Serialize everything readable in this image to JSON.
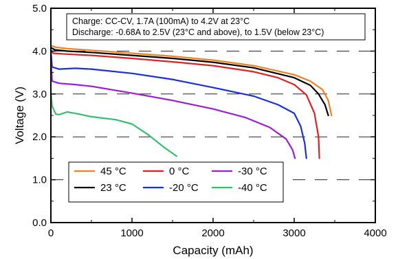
{
  "chart_data": {
    "type": "line",
    "xlabel": "Capacity (mAh)",
    "ylabel": "Voltage (V)",
    "xlim": [
      0,
      4000
    ],
    "ylim": [
      0.0,
      5.0
    ],
    "x_ticks": [
      0,
      1000,
      2000,
      3000,
      4000
    ],
    "x_tick_labels": [
      "0",
      "1000",
      "2000",
      "3000",
      "4000"
    ],
    "y_ticks": [
      0,
      1,
      2,
      3,
      4,
      5
    ],
    "y_tick_labels": [
      "0.0",
      "1.0",
      "2.0",
      "3.0",
      "4.0",
      "5.0"
    ],
    "grid": "horizontal dashed",
    "legend_placement": "bottom-left",
    "annotation": {
      "line1": "Charge: CC-CV, 1.7A (100mA) to 4.2V at 23°C",
      "line2": "Discharge: -0.68A to 2.5V (23°C and above), to 1.5V (below 23°C)"
    },
    "series": [
      {
        "name": "45 °C",
        "color": "#f08020",
        "points": [
          [
            0,
            4.13
          ],
          [
            60,
            4.09
          ],
          [
            200,
            4.06
          ],
          [
            500,
            4.02
          ],
          [
            1000,
            3.95
          ],
          [
            1500,
            3.88
          ],
          [
            2000,
            3.79
          ],
          [
            2500,
            3.66
          ],
          [
            3000,
            3.45
          ],
          [
            3200,
            3.3
          ],
          [
            3350,
            3.1
          ],
          [
            3420,
            2.85
          ],
          [
            3460,
            2.5
          ]
        ]
      },
      {
        "name": "23 °C",
        "color": "#000000",
        "points": [
          [
            0,
            4.08
          ],
          [
            50,
            4.03
          ],
          [
            200,
            4.0
          ],
          [
            500,
            3.97
          ],
          [
            1000,
            3.9
          ],
          [
            1500,
            3.83
          ],
          [
            2000,
            3.74
          ],
          [
            2500,
            3.61
          ],
          [
            3000,
            3.38
          ],
          [
            3200,
            3.2
          ],
          [
            3300,
            3.0
          ],
          [
            3380,
            2.75
          ],
          [
            3420,
            2.5
          ]
        ]
      },
      {
        "name": "0 °C",
        "color": "#e02020",
        "points": [
          [
            0,
            4.02
          ],
          [
            30,
            3.95
          ],
          [
            200,
            3.93
          ],
          [
            500,
            3.9
          ],
          [
            1000,
            3.83
          ],
          [
            1500,
            3.75
          ],
          [
            2000,
            3.66
          ],
          [
            2500,
            3.52
          ],
          [
            2800,
            3.38
          ],
          [
            3000,
            3.22
          ],
          [
            3150,
            2.98
          ],
          [
            3250,
            2.55
          ],
          [
            3300,
            2.0
          ],
          [
            3310,
            1.5
          ]
        ]
      },
      {
        "name": "-20 °C",
        "color": "#1a2ee0",
        "points": [
          [
            0,
            4.02
          ],
          [
            15,
            3.63
          ],
          [
            100,
            3.58
          ],
          [
            300,
            3.6
          ],
          [
            500,
            3.58
          ],
          [
            1000,
            3.48
          ],
          [
            1500,
            3.34
          ],
          [
            2000,
            3.15
          ],
          [
            2500,
            2.95
          ],
          [
            2800,
            2.75
          ],
          [
            3000,
            2.55
          ],
          [
            3080,
            2.25
          ],
          [
            3130,
            1.85
          ],
          [
            3150,
            1.5
          ]
        ]
      },
      {
        "name": "-30 °C",
        "color": "#9a1ed0",
        "points": [
          [
            0,
            3.85
          ],
          [
            15,
            3.3
          ],
          [
            100,
            3.25
          ],
          [
            300,
            3.22
          ],
          [
            500,
            3.18
          ],
          [
            1000,
            3.02
          ],
          [
            1500,
            2.85
          ],
          [
            2000,
            2.65
          ],
          [
            2400,
            2.45
          ],
          [
            2700,
            2.22
          ],
          [
            2900,
            1.95
          ],
          [
            2980,
            1.7
          ],
          [
            3010,
            1.5
          ]
        ]
      },
      {
        "name": "-40 °C",
        "color": "#30c070",
        "points": [
          [
            0,
            3.05
          ],
          [
            15,
            2.72
          ],
          [
            60,
            2.53
          ],
          [
            100,
            2.52
          ],
          [
            200,
            2.58
          ],
          [
            300,
            2.55
          ],
          [
            500,
            2.47
          ],
          [
            800,
            2.4
          ],
          [
            1000,
            2.3
          ],
          [
            1200,
            2.05
          ],
          [
            1400,
            1.75
          ],
          [
            1550,
            1.55
          ]
        ]
      }
    ]
  }
}
